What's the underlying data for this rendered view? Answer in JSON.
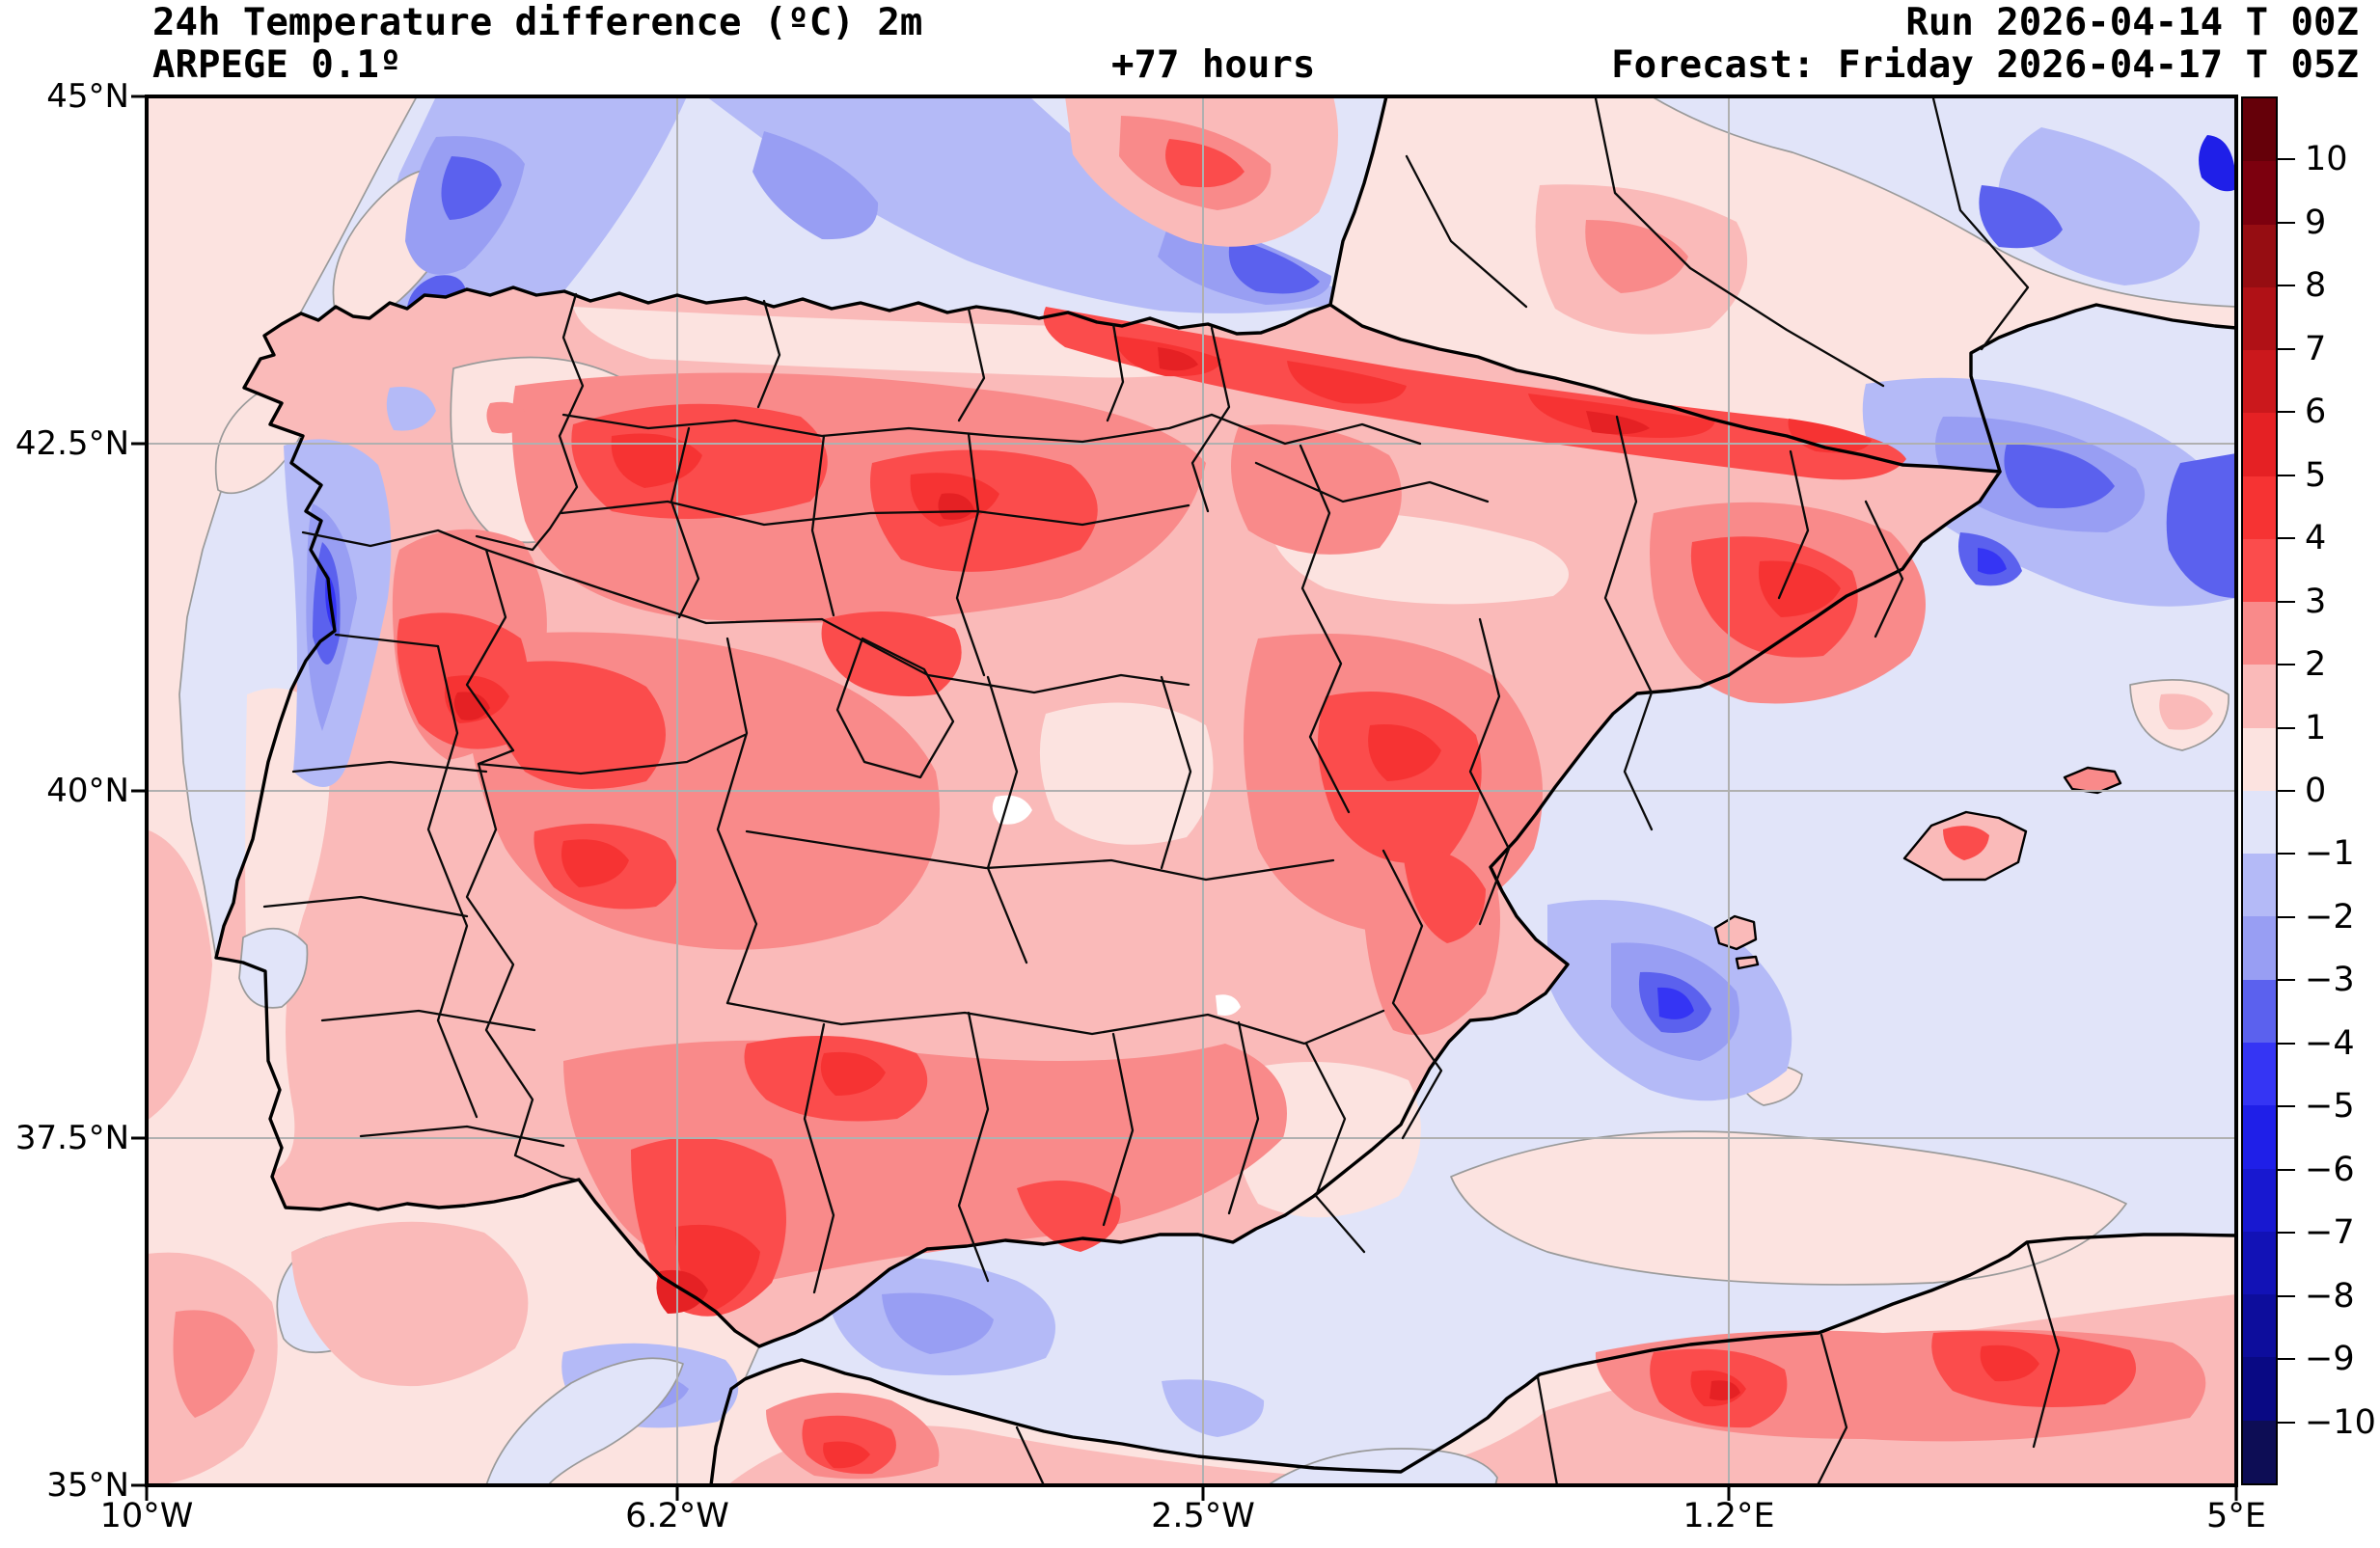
{
  "header": {
    "title": "24h Temperature difference (ºC) 2m",
    "model": "ARPEGE 0.1º",
    "lead_time": "+77 hours",
    "run": "Run 2026-04-14 T 00Z",
    "forecast": "Forecast: Friday 2026-04-17 T 05Z"
  },
  "axes": {
    "lat_ticks": [
      "45°N",
      "42.5°N",
      "40°N",
      "37.5°N",
      "35°N"
    ],
    "lon_ticks": [
      "10°W",
      "6.2°W",
      "2.5°W",
      "1.2°E",
      "5°E"
    ]
  },
  "colorbar": {
    "tick_labels": [
      "10",
      "9",
      "8",
      "7",
      "6",
      "5",
      "4",
      "3",
      "2",
      "1",
      "0",
      "−1",
      "−2",
      "−3",
      "−4",
      "−5",
      "−6",
      "−7",
      "−8",
      "−9",
      "−10"
    ],
    "segments_top_to_bottom": [
      {
        "key": "r10",
        "range": "> 10",
        "color": "#650009"
      },
      {
        "key": "r9",
        "range": "9 to 10",
        "color": "#7c000e"
      },
      {
        "key": "r8",
        "range": "8 to 9",
        "color": "#960d12"
      },
      {
        "key": "r7",
        "range": "7 to 8",
        "color": "#b01116"
      },
      {
        "key": "r6",
        "range": "6 to 7",
        "color": "#cb181c"
      },
      {
        "key": "r5",
        "range": "5 to 6",
        "color": "#e52124"
      },
      {
        "key": "r4",
        "range": "4 to 5",
        "color": "#f63333"
      },
      {
        "key": "r3",
        "range": "3 to 4",
        "color": "#fb4c4c"
      },
      {
        "key": "r2",
        "range": "2 to 3",
        "color": "#f98a8a"
      },
      {
        "key": "r1",
        "range": "1 to 2",
        "color": "#fabab9"
      },
      {
        "key": "r0",
        "range": "0 to 1",
        "color": "#fce3e0"
      },
      {
        "key": "b0",
        "range": "−1 to 0",
        "color": "#e1e4f9"
      },
      {
        "key": "b1",
        "range": "−2 to −1",
        "color": "#b4baf7"
      },
      {
        "key": "b2",
        "range": "−3 to −2",
        "color": "#989ef3"
      },
      {
        "key": "b3",
        "range": "−4 to −3",
        "color": "#5b61ee"
      },
      {
        "key": "b4",
        "range": "−5 to −4",
        "color": "#3535f4"
      },
      {
        "key": "b5",
        "range": "−6 to −5",
        "color": "#1f1fe8"
      },
      {
        "key": "b6",
        "range": "−7 to −6",
        "color": "#1818d0"
      },
      {
        "key": "b7",
        "range": "−8 to −7",
        "color": "#1212b6"
      },
      {
        "key": "b8",
        "range": "−9 to −8",
        "color": "#0d0d9c"
      },
      {
        "key": "b9",
        "range": "−10 to −9",
        "color": "#090984"
      },
      {
        "key": "b10",
        "range": "< −10",
        "color": "#0d0d55"
      }
    ]
  },
  "chart_data": {
    "type": "heatmap",
    "subtype": "filled_contour_weather_map",
    "title": "24h Temperature difference (ºC) 2m",
    "model": "ARPEGE 0.1º",
    "run": "2026-04-14 00Z",
    "forecast_valid": "Friday 2026-04-17 05Z",
    "lead_time_hours": 77,
    "area": "Iberian Peninsula, Balearic Islands, southern France, northwest Africa",
    "x_axis": {
      "quantity": "longitude",
      "ticks": [
        "10°W",
        "6.2°W",
        "2.5°W",
        "1.2°E",
        "5°E"
      ],
      "range": [
        "10°W",
        "5°E"
      ]
    },
    "y_axis": {
      "quantity": "latitude",
      "ticks": [
        "45°N",
        "42.5°N",
        "40°N",
        "37.5°N",
        "35°N"
      ],
      "range": [
        "35°N",
        "45°N"
      ]
    },
    "grid": true,
    "colorbar_levels_c": [
      -10,
      -9,
      -8,
      -7,
      -6,
      -5,
      -4,
      -3,
      -2,
      -1,
      0,
      1,
      2,
      3,
      4,
      5,
      6,
      7,
      8,
      9,
      10
    ],
    "colorbar_extended_above": true,
    "colorbar_extended_below": true,
    "contour_interval_c": 1,
    "notable_features": [
      {
        "region": "Most of the interior Iberian Peninsula",
        "anomaly_c": "+1 to +4 (warming)"
      },
      {
        "region": "Southern slopes of the Pyrenees (Huesca–Lleida band)",
        "anomaly_c": "+4 to +6"
      },
      {
        "region": "Douro valley / northern Portugal and Extremadura cores",
        "anomaly_c": "+4 to +6"
      },
      {
        "region": "Cádiz area spot (southwest Andalucía)",
        "anomaly_c": "+5 to +6"
      },
      {
        "region": "Galicia west coast (Rías Baixas)",
        "anomaly_c": "−2 to −5 (cooling)"
      },
      {
        "region": "Bay of Biscay and Atlantic northwest of Galicia",
        "anomaly_c": "−1 to −4"
      },
      {
        "region": "Mediterranean off Catalonia / Gulf of Lion",
        "anomaly_c": "−2 to −4"
      },
      {
        "region": "Sea off Valencia / Alicante coast",
        "anomaly_c": "−2 to −5"
      },
      {
        "region": "Strait of Gibraltar and Alboran Sea",
        "anomaly_c": "−1 to −3"
      },
      {
        "region": "Atlantic off Portugal and Gulf of Cádiz",
        "anomaly_c": "0 to +2"
      },
      {
        "region": "Rif and Tell Atlas mountains (NW Africa)",
        "anomaly_c": "+2 to +5"
      },
      {
        "region": "Southeast France",
        "anomaly_c": "−1 to −4 with local +1 to +3 patches"
      }
    ]
  }
}
